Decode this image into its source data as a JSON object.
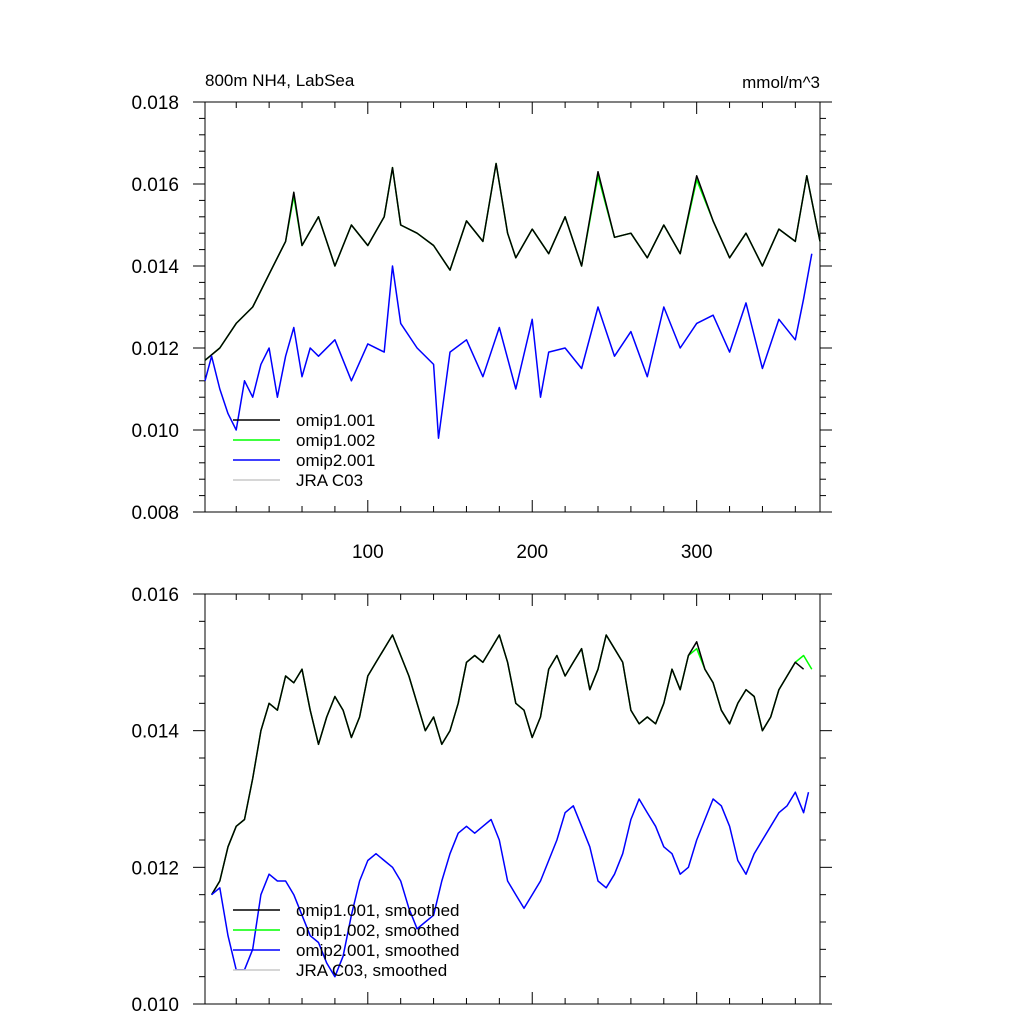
{
  "chart_data": [
    {
      "type": "line",
      "title": "800m NH4, LabSea",
      "units": "mmol/m^3",
      "xlim": [
        1,
        375
      ],
      "ylim": [
        0.008,
        0.018
      ],
      "xticks": [
        100,
        200,
        300
      ],
      "yticks": [
        "0.008",
        "0.010",
        "0.012",
        "0.014",
        "0.016",
        "0.018"
      ],
      "legend_position": "bottom-left",
      "series": [
        {
          "name": "omip1.001",
          "color": "#000000",
          "x": [
            1,
            10,
            20,
            30,
            40,
            50,
            55,
            60,
            70,
            80,
            90,
            100,
            110,
            115,
            120,
            130,
            140,
            150,
            160,
            170,
            178,
            185,
            190,
            200,
            210,
            220,
            230,
            240,
            250,
            260,
            270,
            280,
            290,
            300,
            310,
            320,
            330,
            340,
            350,
            360,
            367,
            375
          ],
          "y": [
            0.0117,
            0.012,
            0.0126,
            0.013,
            0.0138,
            0.0146,
            0.0158,
            0.0145,
            0.0152,
            0.014,
            0.015,
            0.0145,
            0.0152,
            0.0164,
            0.015,
            0.0148,
            0.0145,
            0.0139,
            0.0151,
            0.0146,
            0.0165,
            0.0148,
            0.0142,
            0.0149,
            0.0143,
            0.0152,
            0.014,
            0.0163,
            0.0147,
            0.0148,
            0.0142,
            0.015,
            0.0143,
            0.0162,
            0.0151,
            0.0142,
            0.0148,
            0.014,
            0.0149,
            0.0146,
            0.0162,
            0.0146
          ]
        },
        {
          "name": "omip1.002",
          "color": "#00ff00",
          "x": [
            1,
            10,
            20,
            30,
            40,
            50,
            55,
            60,
            70,
            80,
            90,
            100,
            110,
            115,
            120,
            130,
            140,
            150,
            160,
            170,
            178,
            185,
            190,
            200,
            210,
            220,
            230,
            240,
            250,
            260,
            270,
            280,
            290,
            300,
            310,
            320,
            330,
            340,
            350,
            360,
            367,
            375
          ],
          "y": [
            0.0117,
            0.012,
            0.0126,
            0.013,
            0.0138,
            0.0146,
            0.0157,
            0.0145,
            0.0152,
            0.014,
            0.015,
            0.0145,
            0.0152,
            0.0164,
            0.015,
            0.0148,
            0.0145,
            0.0139,
            0.0151,
            0.0146,
            0.0165,
            0.0148,
            0.0142,
            0.0149,
            0.0143,
            0.0152,
            0.014,
            0.0162,
            0.0147,
            0.0148,
            0.0142,
            0.015,
            0.0143,
            0.0161,
            0.0151,
            0.0142,
            0.0148,
            0.014,
            0.0149,
            0.0146,
            0.0162,
            0.0146
          ]
        },
        {
          "name": "omip2.001",
          "color": "#0000ff",
          "x": [
            1,
            5,
            10,
            15,
            20,
            25,
            30,
            35,
            40,
            45,
            50,
            55,
            60,
            65,
            70,
            80,
            90,
            100,
            110,
            115,
            120,
            130,
            140,
            143,
            150,
            160,
            170,
            180,
            190,
            200,
            205,
            210,
            220,
            230,
            240,
            250,
            260,
            270,
            280,
            290,
            300,
            310,
            320,
            330,
            340,
            350,
            360,
            365,
            370
          ],
          "y": [
            0.0112,
            0.0118,
            0.011,
            0.0104,
            0.01,
            0.0112,
            0.0108,
            0.0116,
            0.012,
            0.0108,
            0.0118,
            0.0125,
            0.0113,
            0.012,
            0.0118,
            0.0122,
            0.0112,
            0.0121,
            0.0119,
            0.014,
            0.0126,
            0.012,
            0.0116,
            0.0098,
            0.0119,
            0.0122,
            0.0113,
            0.0125,
            0.011,
            0.0127,
            0.0108,
            0.0119,
            0.012,
            0.0115,
            0.013,
            0.0118,
            0.0124,
            0.0113,
            0.013,
            0.012,
            0.0126,
            0.0128,
            0.0119,
            0.0131,
            0.0115,
            0.0127,
            0.0122,
            0.0132,
            0.0143
          ]
        },
        {
          "name": "JRA C03",
          "color": "#c8c8c8",
          "x": [],
          "y": []
        }
      ]
    },
    {
      "type": "line",
      "title": "",
      "xlim": [
        1,
        375
      ],
      "ylim": [
        0.01,
        0.016
      ],
      "xticks": [
        100,
        200,
        300
      ],
      "yticks": [
        "0.010",
        "0.012",
        "0.014",
        "0.016"
      ],
      "legend_position": "bottom-left",
      "series": [
        {
          "name": "omip1.001, smoothed",
          "color": "#000000",
          "x": [
            5,
            10,
            15,
            20,
            25,
            30,
            35,
            40,
            45,
            50,
            55,
            60,
            65,
            70,
            75,
            80,
            85,
            90,
            95,
            100,
            105,
            110,
            115,
            120,
            125,
            130,
            135,
            140,
            145,
            150,
            155,
            160,
            165,
            170,
            175,
            180,
            185,
            190,
            195,
            200,
            205,
            210,
            215,
            220,
            225,
            230,
            235,
            240,
            245,
            250,
            255,
            260,
            265,
            270,
            275,
            280,
            285,
            290,
            295,
            300,
            305,
            310,
            315,
            320,
            325,
            330,
            335,
            340,
            345,
            350,
            355,
            360,
            365
          ],
          "y": [
            0.0116,
            0.0118,
            0.0123,
            0.0126,
            0.0127,
            0.0133,
            0.014,
            0.0144,
            0.0143,
            0.0148,
            0.0147,
            0.0149,
            0.0143,
            0.0138,
            0.0142,
            0.0145,
            0.0143,
            0.0139,
            0.0142,
            0.0148,
            0.015,
            0.0152,
            0.0154,
            0.0151,
            0.0148,
            0.0144,
            0.014,
            0.0142,
            0.0138,
            0.014,
            0.0144,
            0.015,
            0.0151,
            0.015,
            0.0152,
            0.0154,
            0.015,
            0.0144,
            0.0143,
            0.0139,
            0.0142,
            0.0149,
            0.0151,
            0.0148,
            0.015,
            0.0152,
            0.0146,
            0.0149,
            0.0154,
            0.0152,
            0.015,
            0.0143,
            0.0141,
            0.0142,
            0.0141,
            0.0144,
            0.0149,
            0.0146,
            0.0151,
            0.0153,
            0.0149,
            0.0147,
            0.0143,
            0.0141,
            0.0144,
            0.0146,
            0.0145,
            0.014,
            0.0142,
            0.0146,
            0.0148,
            0.015,
            0.0149
          ]
        },
        {
          "name": "omip1.002, smoothed",
          "color": "#00ff00",
          "x": [
            5,
            10,
            15,
            20,
            25,
            30,
            35,
            40,
            45,
            50,
            55,
            60,
            65,
            70,
            75,
            80,
            85,
            90,
            95,
            100,
            105,
            110,
            115,
            120,
            125,
            130,
            135,
            140,
            145,
            150,
            155,
            160,
            165,
            170,
            175,
            180,
            185,
            190,
            195,
            200,
            205,
            210,
            215,
            220,
            225,
            230,
            235,
            240,
            245,
            250,
            255,
            260,
            265,
            270,
            275,
            280,
            285,
            290,
            295,
            300,
            305,
            310,
            315,
            320,
            325,
            330,
            335,
            340,
            345,
            350,
            355,
            360,
            365,
            370
          ],
          "y": [
            0.0116,
            0.0118,
            0.0123,
            0.0126,
            0.0127,
            0.0133,
            0.014,
            0.0144,
            0.0143,
            0.0148,
            0.0147,
            0.0149,
            0.0143,
            0.0138,
            0.0142,
            0.0145,
            0.0143,
            0.0139,
            0.0142,
            0.0148,
            0.015,
            0.0152,
            0.0154,
            0.0151,
            0.0148,
            0.0144,
            0.014,
            0.0142,
            0.0138,
            0.014,
            0.0144,
            0.015,
            0.0151,
            0.015,
            0.0152,
            0.0154,
            0.015,
            0.0144,
            0.0143,
            0.0139,
            0.0142,
            0.0149,
            0.0151,
            0.0148,
            0.015,
            0.0152,
            0.0146,
            0.0149,
            0.0154,
            0.0152,
            0.015,
            0.0143,
            0.0141,
            0.0142,
            0.0141,
            0.0144,
            0.0149,
            0.0146,
            0.0151,
            0.0152,
            0.0149,
            0.0147,
            0.0143,
            0.0141,
            0.0144,
            0.0146,
            0.0145,
            0.014,
            0.0142,
            0.0146,
            0.0148,
            0.015,
            0.0151,
            0.0149
          ]
        },
        {
          "name": "omip2.001, smoothed",
          "color": "#0000ff",
          "x": [
            5,
            10,
            15,
            20,
            25,
            30,
            35,
            40,
            45,
            50,
            55,
            60,
            65,
            70,
            75,
            80,
            85,
            90,
            95,
            100,
            105,
            110,
            115,
            120,
            125,
            130,
            135,
            140,
            145,
            150,
            155,
            160,
            165,
            170,
            175,
            180,
            185,
            190,
            195,
            200,
            205,
            210,
            215,
            220,
            225,
            230,
            235,
            240,
            245,
            250,
            255,
            260,
            265,
            270,
            275,
            280,
            285,
            290,
            295,
            300,
            305,
            310,
            315,
            320,
            325,
            330,
            335,
            340,
            345,
            350,
            355,
            360,
            365,
            368
          ],
          "y": [
            0.0116,
            0.0117,
            0.011,
            0.0105,
            0.0105,
            0.0108,
            0.0116,
            0.0119,
            0.0118,
            0.0118,
            0.0116,
            0.0113,
            0.011,
            0.0109,
            0.0106,
            0.0104,
            0.0107,
            0.0113,
            0.0118,
            0.0121,
            0.0122,
            0.0121,
            0.012,
            0.0118,
            0.0114,
            0.0111,
            0.0112,
            0.0113,
            0.0118,
            0.0122,
            0.0125,
            0.0126,
            0.0125,
            0.0126,
            0.0127,
            0.0124,
            0.0118,
            0.0116,
            0.0114,
            0.0116,
            0.0118,
            0.0121,
            0.0124,
            0.0128,
            0.0129,
            0.0126,
            0.0123,
            0.0118,
            0.0117,
            0.0119,
            0.0122,
            0.0127,
            0.013,
            0.0128,
            0.0126,
            0.0123,
            0.0122,
            0.0119,
            0.012,
            0.0124,
            0.0127,
            0.013,
            0.0129,
            0.0126,
            0.0121,
            0.0119,
            0.0122,
            0.0124,
            0.0126,
            0.0128,
            0.0129,
            0.0131,
            0.0128,
            0.0131
          ]
        },
        {
          "name": "JRA C03, smoothed",
          "color": "#c8c8c8",
          "x": [],
          "y": []
        }
      ]
    }
  ]
}
